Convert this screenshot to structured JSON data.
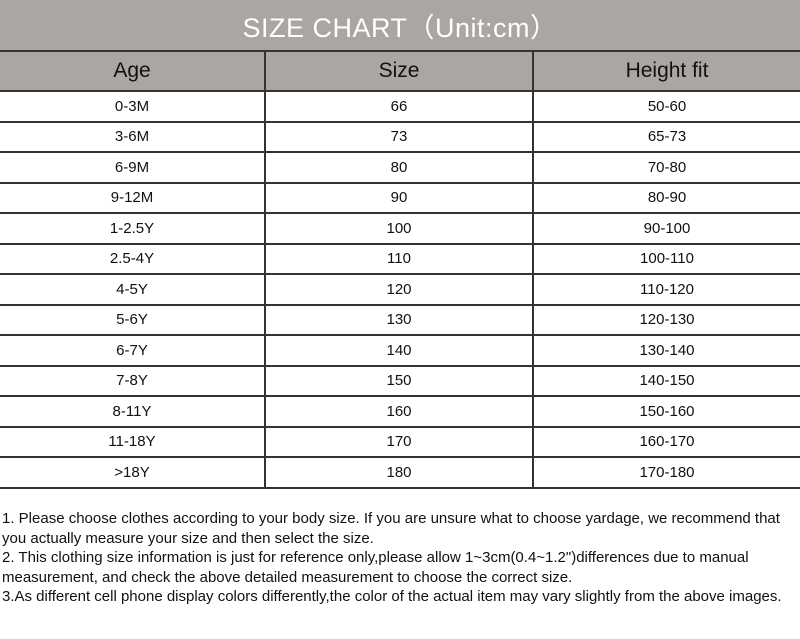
{
  "title": "SIZE CHART（Unit:cm）",
  "columns": [
    "Age",
    "Size",
    "Height fit"
  ],
  "rows": [
    [
      "0-3M",
      "66",
      "50-60"
    ],
    [
      "3-6M",
      "73",
      "65-73"
    ],
    [
      "6-9M",
      "80",
      "70-80"
    ],
    [
      "9-12M",
      "90",
      "80-90"
    ],
    [
      "1-2.5Y",
      "100",
      "90-100"
    ],
    [
      "2.5-4Y",
      "110",
      "100-110"
    ],
    [
      "4-5Y",
      "120",
      "110-120"
    ],
    [
      "5-6Y",
      "130",
      "120-130"
    ],
    [
      "6-7Y",
      "140",
      "130-140"
    ],
    [
      "7-8Y",
      "150",
      "140-150"
    ],
    [
      "8-11Y",
      "160",
      "150-160"
    ],
    [
      "11-18Y",
      "170",
      "160-170"
    ],
    [
      ">18Y",
      "180",
      "170-180"
    ]
  ],
  "notes": [
    "1. Please choose clothes according to your body size. If you are unsure what to choose yardage, we recommend that you actually measure your size and then select the size.",
    "2. This clothing size information is just for reference only,please allow 1~3cm(0.4~1.2\")differences due to manual measurement, and check the above detailed measurement to choose the correct size.",
    "3.As different cell phone display colors differently,the color of the actual item may vary slightly from the above images."
  ],
  "colors": {
    "header_bg": "#aaa6a3",
    "title_text": "#ffffff",
    "border": "#333333"
  }
}
